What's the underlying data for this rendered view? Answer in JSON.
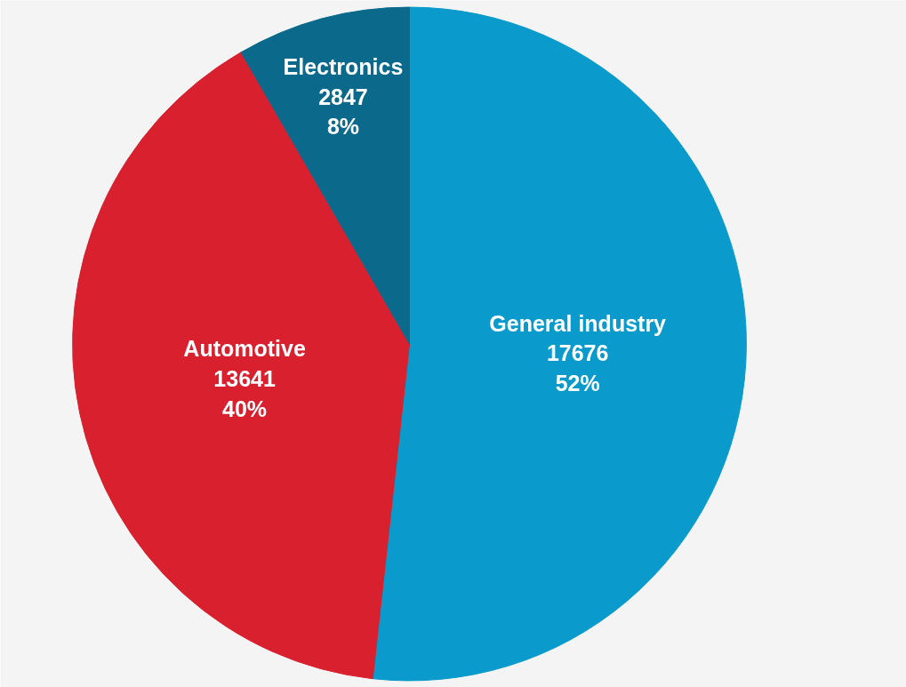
{
  "chart_data": {
    "type": "pie",
    "categories": [
      "General industry",
      "Automotive",
      "Electronics"
    ],
    "values": [
      17676,
      13641,
      2847
    ],
    "colors": [
      "#0a9acb",
      "#d9202e",
      "#0b6a8c"
    ],
    "value_labels": [
      "17676\n52%",
      "13641\n40%",
      "2847\n8%"
    ],
    "legend": false
  }
}
